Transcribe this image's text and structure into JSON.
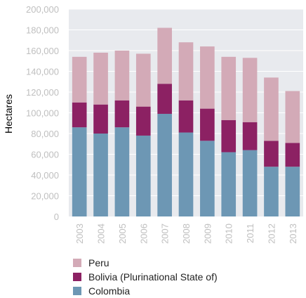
{
  "chart_data": {
    "type": "bar",
    "stacked": true,
    "categories": [
      "2003",
      "2004",
      "2005",
      "2006",
      "2007",
      "2008",
      "2009",
      "2010",
      "2011",
      "2012",
      "2013"
    ],
    "series": [
      {
        "name": "Colombia",
        "color": "#6d97b4",
        "values": [
          86000,
          80000,
          86000,
          78000,
          99000,
          81000,
          73000,
          62000,
          64000,
          48000,
          48000
        ]
      },
      {
        "name": "Bolivia (Plurinational State of)",
        "color": "#8c2163",
        "values": [
          24000,
          28000,
          26000,
          28000,
          29000,
          31000,
          31000,
          31000,
          27000,
          25000,
          23000
        ]
      },
      {
        "name": "Peru",
        "color": "#d3aab7",
        "values": [
          44000,
          50000,
          48000,
          51000,
          54000,
          56000,
          60000,
          61000,
          62000,
          61000,
          50000
        ]
      }
    ],
    "ylabel": "Hectares",
    "ylim": [
      0,
      200000
    ],
    "yticks": [
      "0",
      "20,000",
      "40,000",
      "60,000",
      "80,000",
      "100,000",
      "120,000",
      "140,000",
      "160,000",
      "180,000",
      "200,000"
    ],
    "grid": true,
    "legend_position": "bottom",
    "plot_background": "#e8eaee",
    "grid_color": "#ffffff"
  },
  "legend": [
    {
      "label": "Peru",
      "color": "#d3aab7"
    },
    {
      "label": "Bolivia (Plurinational State of)",
      "color": "#8c2163"
    },
    {
      "label": "Colombia",
      "color": "#6d97b4"
    }
  ]
}
